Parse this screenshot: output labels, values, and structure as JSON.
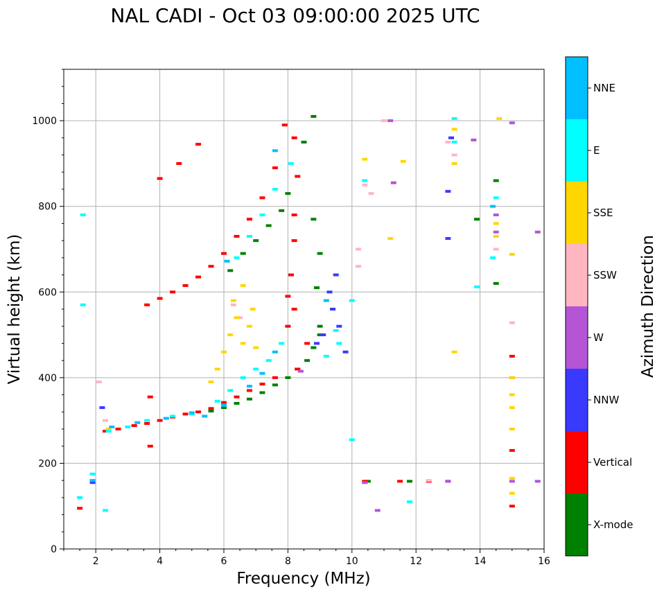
{
  "chart_data": {
    "type": "scatter",
    "title": "NAL CADI - Oct 03 09:00:00 2025 UTC",
    "xlabel": "Frequency (MHz)",
    "ylabel": "Virtual height (km)",
    "xlim": [
      1,
      16
    ],
    "ylim": [
      0,
      1120
    ],
    "xticks": [
      2,
      4,
      6,
      8,
      10,
      12,
      14,
      16
    ],
    "yticks": [
      0,
      200,
      400,
      600,
      800,
      1000
    ],
    "grid": true,
    "colorbar": {
      "label": "Azimuth Direction",
      "categories": [
        {
          "name": "X-mode",
          "color": "#008000"
        },
        {
          "name": "Vertical",
          "color": "#ff0000"
        },
        {
          "name": "NNW",
          "color": "#3a3aff"
        },
        {
          "name": "W",
          "color": "#b455d6"
        },
        {
          "name": "SSW",
          "color": "#ffb6c1"
        },
        {
          "name": "SSE",
          "color": "#ffd700"
        },
        {
          "name": "E",
          "color": "#00ffff"
        },
        {
          "name": "NNE",
          "color": "#00bfff"
        }
      ]
    },
    "traces": [
      {
        "name": "X-mode",
        "points": [
          [
            5.6,
            322
          ],
          [
            6.0,
            330
          ],
          [
            6.4,
            340
          ],
          [
            6.8,
            350
          ],
          [
            7.2,
            365
          ],
          [
            7.6,
            383
          ],
          [
            8.0,
            400
          ],
          [
            8.3,
            420
          ],
          [
            8.6,
            440
          ],
          [
            8.8,
            470
          ],
          [
            9.0,
            500
          ],
          [
            6.2,
            650
          ],
          [
            6.6,
            690
          ],
          [
            7.0,
            720
          ],
          [
            7.4,
            755
          ],
          [
            7.8,
            790
          ],
          [
            8.0,
            830
          ],
          [
            8.5,
            950
          ],
          [
            8.8,
            1010
          ],
          [
            8.8,
            770
          ],
          [
            9.0,
            690
          ],
          [
            8.9,
            610
          ],
          [
            9.0,
            520
          ],
          [
            10.5,
            158
          ],
          [
            11.8,
            158
          ],
          [
            14.5,
            620
          ],
          [
            13.9,
            770
          ],
          [
            14.5,
            860
          ]
        ]
      },
      {
        "name": "Vertical",
        "points": [
          [
            1.5,
            95
          ],
          [
            2.3,
            275
          ],
          [
            2.7,
            280
          ],
          [
            3.2,
            288
          ],
          [
            3.6,
            293
          ],
          [
            4.0,
            300
          ],
          [
            4.4,
            308
          ],
          [
            4.8,
            315
          ],
          [
            5.2,
            320
          ],
          [
            5.6,
            328
          ],
          [
            6.0,
            342
          ],
          [
            6.4,
            355
          ],
          [
            6.8,
            370
          ],
          [
            7.2,
            385
          ],
          [
            7.6,
            400
          ],
          [
            3.6,
            570
          ],
          [
            4.0,
            585
          ],
          [
            4.4,
            600
          ],
          [
            4.8,
            615
          ],
          [
            5.2,
            635
          ],
          [
            5.6,
            660
          ],
          [
            6.0,
            690
          ],
          [
            6.4,
            730
          ],
          [
            6.8,
            770
          ],
          [
            7.2,
            820
          ],
          [
            7.6,
            890
          ],
          [
            7.9,
            990
          ],
          [
            5.2,
            945
          ],
          [
            4.0,
            865
          ],
          [
            4.6,
            900
          ],
          [
            8.2,
            960
          ],
          [
            8.3,
            870
          ],
          [
            8.2,
            780
          ],
          [
            8.2,
            720
          ],
          [
            8.1,
            640
          ],
          [
            8.0,
            590
          ],
          [
            8.2,
            560
          ],
          [
            8.0,
            520
          ],
          [
            8.6,
            480
          ],
          [
            10.4,
            158
          ],
          [
            11.5,
            158
          ],
          [
            12.4,
            158
          ],
          [
            15.0,
            450
          ],
          [
            15.0,
            230
          ],
          [
            15.0,
            100
          ],
          [
            3.7,
            240
          ],
          [
            3.7,
            355
          ],
          [
            8.3,
            420
          ]
        ]
      },
      {
        "name": "NNW",
        "points": [
          [
            9.4,
            560
          ],
          [
            9.6,
            520
          ],
          [
            9.3,
            600
          ],
          [
            9.1,
            500
          ],
          [
            8.9,
            480
          ],
          [
            9.5,
            640
          ],
          [
            9.8,
            460
          ],
          [
            13.0,
            158
          ],
          [
            13.0,
            835
          ],
          [
            13.0,
            725
          ],
          [
            13.1,
            960
          ],
          [
            1.9,
            155
          ],
          [
            2.2,
            330
          ]
        ]
      },
      {
        "name": "W",
        "points": [
          [
            8.4,
            415
          ],
          [
            10.4,
            155
          ],
          [
            11.3,
            855
          ],
          [
            13.0,
            158
          ],
          [
            14.5,
            780
          ],
          [
            14.5,
            740
          ],
          [
            15.0,
            400
          ],
          [
            15.0,
            158
          ],
          [
            15.8,
            158
          ],
          [
            15.8,
            740
          ],
          [
            15.0,
            995
          ],
          [
            13.8,
            955
          ],
          [
            10.8,
            90
          ],
          [
            11.2,
            1000
          ]
        ]
      },
      {
        "name": "SSW",
        "points": [
          [
            2.1,
            390
          ],
          [
            2.3,
            300
          ],
          [
            6.3,
            570
          ],
          [
            6.5,
            540
          ],
          [
            10.2,
            700
          ],
          [
            10.2,
            660
          ],
          [
            10.4,
            850
          ],
          [
            10.6,
            830
          ],
          [
            12.4,
            160
          ],
          [
            13.0,
            950
          ],
          [
            13.2,
            920
          ],
          [
            14.5,
            700
          ],
          [
            15.0,
            528
          ],
          [
            11.0,
            1000
          ]
        ]
      },
      {
        "name": "SSE",
        "points": [
          [
            5.6,
            390
          ],
          [
            5.8,
            420
          ],
          [
            6.0,
            460
          ],
          [
            6.2,
            500
          ],
          [
            6.4,
            540
          ],
          [
            6.6,
            480
          ],
          [
            6.8,
            520
          ],
          [
            7.0,
            470
          ],
          [
            6.6,
            615
          ],
          [
            6.3,
            580
          ],
          [
            6.9,
            560
          ],
          [
            10.4,
            910
          ],
          [
            11.2,
            725
          ],
          [
            11.6,
            905
          ],
          [
            13.2,
            980
          ],
          [
            13.2,
            900
          ],
          [
            13.2,
            460
          ],
          [
            14.5,
            760
          ],
          [
            14.5,
            730
          ],
          [
            14.6,
            1005
          ],
          [
            15.0,
            360
          ],
          [
            15.0,
            330
          ],
          [
            15.0,
            280
          ],
          [
            15.0,
            165
          ],
          [
            15.0,
            130
          ],
          [
            15.0,
            688
          ],
          [
            15.0,
            400
          ],
          [
            2.4,
            280
          ]
        ]
      },
      {
        "name": "E",
        "points": [
          [
            1.6,
            570
          ],
          [
            1.6,
            780
          ],
          [
            1.5,
            120
          ],
          [
            2.3,
            90
          ],
          [
            1.9,
            175
          ],
          [
            2.4,
            275
          ],
          [
            3.0,
            285
          ],
          [
            3.6,
            300
          ],
          [
            4.4,
            310
          ],
          [
            5.0,
            315
          ],
          [
            5.8,
            345
          ],
          [
            6.2,
            370
          ],
          [
            6.6,
            400
          ],
          [
            7.0,
            420
          ],
          [
            7.4,
            440
          ],
          [
            7.8,
            480
          ],
          [
            6.4,
            680
          ],
          [
            6.8,
            730
          ],
          [
            7.2,
            780
          ],
          [
            7.6,
            840
          ],
          [
            8.1,
            900
          ],
          [
            9.2,
            450
          ],
          [
            9.6,
            480
          ],
          [
            9.5,
            510
          ],
          [
            10.0,
            580
          ],
          [
            10.4,
            860
          ],
          [
            11.8,
            110
          ],
          [
            13.2,
            1005
          ],
          [
            13.2,
            950
          ],
          [
            14.4,
            680
          ],
          [
            14.5,
            820
          ],
          [
            13.9,
            612
          ],
          [
            10.0,
            255
          ]
        ]
      },
      {
        "name": "NNE",
        "points": [
          [
            1.9,
            160
          ],
          [
            2.5,
            285
          ],
          [
            3.3,
            295
          ],
          [
            4.2,
            305
          ],
          [
            5.0,
            318
          ],
          [
            5.4,
            310
          ],
          [
            6.0,
            335
          ],
          [
            6.8,
            380
          ],
          [
            7.2,
            410
          ],
          [
            7.6,
            460
          ],
          [
            6.1,
            672
          ],
          [
            7.6,
            930
          ],
          [
            14.4,
            800
          ],
          [
            9.2,
            580
          ]
        ]
      }
    ]
  }
}
